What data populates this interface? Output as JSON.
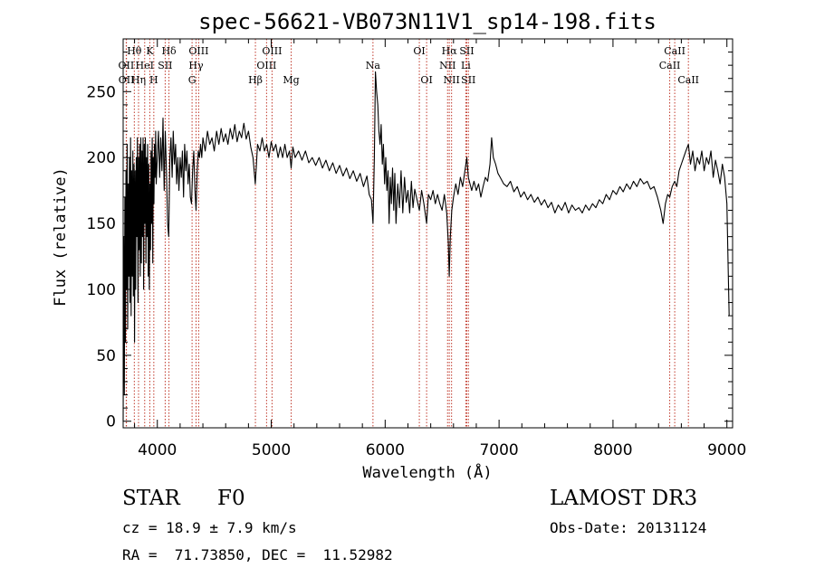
{
  "chart_data": {
    "type": "line",
    "title": "spec-56621-VB073N11V1_sp14-198.fits",
    "xlabel": "Wavelength (Å)",
    "ylabel": "Flux (relative)",
    "xlim": [
      3700,
      9050
    ],
    "ylim": [
      -5,
      290
    ],
    "x_ticks": [
      4000,
      5000,
      6000,
      7000,
      8000,
      9000
    ],
    "y_ticks": [
      0,
      50,
      100,
      150,
      200,
      250
    ],
    "line_color": "#000000",
    "marker_color": "#c0392b",
    "lines": [
      {
        "label": "Hθ",
        "wave": 3798,
        "row": 0
      },
      {
        "label": "OII",
        "wave": 3727,
        "row": 1
      },
      {
        "label": "OII",
        "wave": 3729,
        "row": 2
      },
      {
        "label": "HeI",
        "wave": 3889,
        "row": 1
      },
      {
        "label": "Hη",
        "wave": 3835,
        "row": 2
      },
      {
        "label": "K",
        "wave": 3934,
        "row": 0
      },
      {
        "label": "SII",
        "wave": 4069,
        "row": 1
      },
      {
        "label": "H",
        "wave": 3969,
        "row": 2
      },
      {
        "label": "Hδ",
        "wave": 4102,
        "row": 0
      },
      {
        "label": "OIII",
        "wave": 4363,
        "row": 0
      },
      {
        "label": "Hγ",
        "wave": 4340,
        "row": 1
      },
      {
        "label": "G",
        "wave": 4305,
        "row": 2
      },
      {
        "label": "OIII",
        "wave": 5007,
        "row": 0
      },
      {
        "label": "OIII",
        "wave": 4959,
        "row": 1
      },
      {
        "label": "Hβ",
        "wave": 4861,
        "row": 2
      },
      {
        "label": "Mg",
        "wave": 5175,
        "row": 2
      },
      {
        "label": "Na",
        "wave": 5893,
        "row": 1
      },
      {
        "label": "OI",
        "wave": 6300,
        "row": 0
      },
      {
        "label": "OI",
        "wave": 6364,
        "row": 2
      },
      {
        "label": "Hα",
        "wave": 6563,
        "row": 0
      },
      {
        "label": "NII",
        "wave": 6548,
        "row": 1
      },
      {
        "label": "NII",
        "wave": 6583,
        "row": 2
      },
      {
        "label": "SII",
        "wave": 6717,
        "row": 0
      },
      {
        "label": "Li",
        "wave": 6708,
        "row": 1
      },
      {
        "label": "SII",
        "wave": 6731,
        "row": 2
      },
      {
        "label": "CaII",
        "wave": 8542,
        "row": 0
      },
      {
        "label": "CaII",
        "wave": 8498,
        "row": 1
      },
      {
        "label": "CaII",
        "wave": 8662,
        "row": 2
      }
    ],
    "spectrum": [
      [
        3700,
        0
      ],
      [
        3705,
        140
      ],
      [
        3710,
        20
      ],
      [
        3715,
        170
      ],
      [
        3720,
        60
      ],
      [
        3725,
        190
      ],
      [
        3730,
        100
      ],
      [
        3735,
        210
      ],
      [
        3740,
        70
      ],
      [
        3745,
        180
      ],
      [
        3750,
        110
      ],
      [
        3755,
        200
      ],
      [
        3760,
        90
      ],
      [
        3765,
        215
      ],
      [
        3770,
        80
      ],
      [
        3775,
        190
      ],
      [
        3780,
        110
      ],
      [
        3785,
        205
      ],
      [
        3790,
        95
      ],
      [
        3795,
        195
      ],
      [
        3800,
        60
      ],
      [
        3805,
        190
      ],
      [
        3810,
        100
      ],
      [
        3815,
        200
      ],
      [
        3820,
        140
      ],
      [
        3825,
        215
      ],
      [
        3830,
        90
      ],
      [
        3835,
        200
      ],
      [
        3840,
        130
      ],
      [
        3845,
        210
      ],
      [
        3850,
        110
      ],
      [
        3855,
        215
      ],
      [
        3860,
        120
      ],
      [
        3865,
        205
      ],
      [
        3870,
        140
      ],
      [
        3875,
        215
      ],
      [
        3880,
        100
      ],
      [
        3885,
        210
      ],
      [
        3890,
        150
      ],
      [
        3895,
        215
      ],
      [
        3900,
        120
      ],
      [
        3905,
        200
      ],
      [
        3910,
        140
      ],
      [
        3915,
        210
      ],
      [
        3920,
        110
      ],
      [
        3925,
        195
      ],
      [
        3930,
        100
      ],
      [
        3935,
        180
      ],
      [
        3940,
        130
      ],
      [
        3945,
        205
      ],
      [
        3950,
        150
      ],
      [
        3955,
        215
      ],
      [
        3960,
        120
      ],
      [
        3965,
        200
      ],
      [
        3970,
        165
      ],
      [
        3975,
        210
      ],
      [
        3980,
        185
      ],
      [
        3985,
        220
      ],
      [
        3990,
        180
      ],
      [
        4000,
        200
      ],
      [
        4010,
        220
      ],
      [
        4020,
        185
      ],
      [
        4030,
        215
      ],
      [
        4040,
        190
      ],
      [
        4050,
        230
      ],
      [
        4060,
        175
      ],
      [
        4070,
        220
      ],
      [
        4080,
        190
      ],
      [
        4090,
        150
      ],
      [
        4100,
        140
      ],
      [
        4110,
        200
      ],
      [
        4120,
        215
      ],
      [
        4130,
        185
      ],
      [
        4140,
        220
      ],
      [
        4150,
        195
      ],
      [
        4160,
        210
      ],
      [
        4170,
        180
      ],
      [
        4180,
        200
      ],
      [
        4190,
        175
      ],
      [
        4200,
        200
      ],
      [
        4210,
        185
      ],
      [
        4220,
        205
      ],
      [
        4230,
        170
      ],
      [
        4240,
        210
      ],
      [
        4250,
        190
      ],
      [
        4260,
        205
      ],
      [
        4270,
        180
      ],
      [
        4280,
        195
      ],
      [
        4290,
        170
      ],
      [
        4300,
        165
      ],
      [
        4310,
        190
      ],
      [
        4320,
        205
      ],
      [
        4330,
        175
      ],
      [
        4340,
        160
      ],
      [
        4350,
        190
      ],
      [
        4360,
        205
      ],
      [
        4370,
        200
      ],
      [
        4380,
        210
      ],
      [
        4390,
        200
      ],
      [
        4400,
        215
      ],
      [
        4420,
        205
      ],
      [
        4440,
        220
      ],
      [
        4460,
        210
      ],
      [
        4480,
        215
      ],
      [
        4500,
        205
      ],
      [
        4520,
        220
      ],
      [
        4540,
        210
      ],
      [
        4560,
        222
      ],
      [
        4580,
        212
      ],
      [
        4600,
        218
      ],
      [
        4620,
        210
      ],
      [
        4640,
        222
      ],
      [
        4660,
        214
      ],
      [
        4680,
        225
      ],
      [
        4700,
        212
      ],
      [
        4720,
        220
      ],
      [
        4740,
        215
      ],
      [
        4760,
        226
      ],
      [
        4780,
        214
      ],
      [
        4800,
        220
      ],
      [
        4820,
        208
      ],
      [
        4840,
        200
      ],
      [
        4860,
        180
      ],
      [
        4870,
        195
      ],
      [
        4880,
        210
      ],
      [
        4900,
        205
      ],
      [
        4920,
        215
      ],
      [
        4940,
        205
      ],
      [
        4960,
        210
      ],
      [
        4980,
        200
      ],
      [
        5000,
        212
      ],
      [
        5020,
        205
      ],
      [
        5040,
        210
      ],
      [
        5060,
        200
      ],
      [
        5080,
        208
      ],
      [
        5100,
        200
      ],
      [
        5120,
        210
      ],
      [
        5140,
        200
      ],
      [
        5160,
        205
      ],
      [
        5175,
        192
      ],
      [
        5190,
        208
      ],
      [
        5210,
        200
      ],
      [
        5240,
        205
      ],
      [
        5270,
        198
      ],
      [
        5300,
        205
      ],
      [
        5330,
        196
      ],
      [
        5360,
        200
      ],
      [
        5390,
        194
      ],
      [
        5420,
        200
      ],
      [
        5450,
        192
      ],
      [
        5480,
        198
      ],
      [
        5510,
        190
      ],
      [
        5540,
        196
      ],
      [
        5570,
        188
      ],
      [
        5600,
        194
      ],
      [
        5630,
        186
      ],
      [
        5660,
        192
      ],
      [
        5690,
        184
      ],
      [
        5720,
        190
      ],
      [
        5750,
        182
      ],
      [
        5780,
        188
      ],
      [
        5810,
        178
      ],
      [
        5840,
        186
      ],
      [
        5860,
        172
      ],
      [
        5880,
        168
      ],
      [
        5893,
        150
      ],
      [
        5905,
        200
      ],
      [
        5915,
        265
      ],
      [
        5925,
        250
      ],
      [
        5935,
        240
      ],
      [
        5945,
        220
      ],
      [
        5955,
        210
      ],
      [
        5965,
        225
      ],
      [
        5975,
        195
      ],
      [
        5985,
        210
      ],
      [
        5995,
        180
      ],
      [
        6005,
        200
      ],
      [
        6015,
        175
      ],
      [
        6025,
        190
      ],
      [
        6035,
        150
      ],
      [
        6045,
        185
      ],
      [
        6055,
        165
      ],
      [
        6065,
        192
      ],
      [
        6075,
        160
      ],
      [
        6085,
        188
      ],
      [
        6095,
        150
      ],
      [
        6110,
        180
      ],
      [
        6125,
        162
      ],
      [
        6140,
        190
      ],
      [
        6155,
        158
      ],
      [
        6170,
        185
      ],
      [
        6185,
        166
      ],
      [
        6200,
        175
      ],
      [
        6215,
        158
      ],
      [
        6230,
        182
      ],
      [
        6245,
        162
      ],
      [
        6260,
        176
      ],
      [
        6280,
        168
      ],
      [
        6300,
        160
      ],
      [
        6320,
        175
      ],
      [
        6340,
        165
      ],
      [
        6364,
        150
      ],
      [
        6380,
        172
      ],
      [
        6400,
        168
      ],
      [
        6420,
        175
      ],
      [
        6440,
        165
      ],
      [
        6460,
        172
      ],
      [
        6480,
        165
      ],
      [
        6500,
        160
      ],
      [
        6520,
        172
      ],
      [
        6540,
        158
      ],
      [
        6555,
        135
      ],
      [
        6563,
        110
      ],
      [
        6572,
        140
      ],
      [
        6585,
        160
      ],
      [
        6600,
        170
      ],
      [
        6620,
        180
      ],
      [
        6640,
        172
      ],
      [
        6660,
        185
      ],
      [
        6680,
        178
      ],
      [
        6700,
        190
      ],
      [
        6717,
        200
      ],
      [
        6730,
        185
      ],
      [
        6745,
        180
      ],
      [
        6760,
        175
      ],
      [
        6780,
        182
      ],
      [
        6800,
        175
      ],
      [
        6820,
        180
      ],
      [
        6840,
        170
      ],
      [
        6860,
        178
      ],
      [
        6880,
        185
      ],
      [
        6900,
        182
      ],
      [
        6920,
        195
      ],
      [
        6935,
        215
      ],
      [
        6950,
        200
      ],
      [
        6970,
        195
      ],
      [
        6990,
        188
      ],
      [
        7010,
        185
      ],
      [
        7040,
        180
      ],
      [
        7070,
        178
      ],
      [
        7100,
        182
      ],
      [
        7130,
        174
      ],
      [
        7160,
        178
      ],
      [
        7190,
        170
      ],
      [
        7220,
        174
      ],
      [
        7250,
        168
      ],
      [
        7280,
        172
      ],
      [
        7310,
        166
      ],
      [
        7340,
        170
      ],
      [
        7370,
        164
      ],
      [
        7400,
        168
      ],
      [
        7430,
        162
      ],
      [
        7460,
        166
      ],
      [
        7490,
        158
      ],
      [
        7520,
        164
      ],
      [
        7550,
        160
      ],
      [
        7580,
        166
      ],
      [
        7610,
        158
      ],
      [
        7640,
        164
      ],
      [
        7670,
        160
      ],
      [
        7700,
        162
      ],
      [
        7730,
        158
      ],
      [
        7760,
        164
      ],
      [
        7790,
        160
      ],
      [
        7820,
        165
      ],
      [
        7850,
        162
      ],
      [
        7880,
        168
      ],
      [
        7910,
        165
      ],
      [
        7940,
        172
      ],
      [
        7970,
        168
      ],
      [
        8000,
        175
      ],
      [
        8030,
        172
      ],
      [
        8060,
        178
      ],
      [
        8090,
        174
      ],
      [
        8120,
        180
      ],
      [
        8150,
        176
      ],
      [
        8180,
        182
      ],
      [
        8210,
        178
      ],
      [
        8240,
        184
      ],
      [
        8270,
        180
      ],
      [
        8300,
        182
      ],
      [
        8330,
        176
      ],
      [
        8360,
        178
      ],
      [
        8390,
        170
      ],
      [
        8420,
        160
      ],
      [
        8440,
        150
      ],
      [
        8460,
        165
      ],
      [
        8480,
        172
      ],
      [
        8498,
        170
      ],
      [
        8520,
        178
      ],
      [
        8542,
        182
      ],
      [
        8560,
        178
      ],
      [
        8580,
        190
      ],
      [
        8600,
        195
      ],
      [
        8620,
        200
      ],
      [
        8640,
        205
      ],
      [
        8662,
        210
      ],
      [
        8680,
        195
      ],
      [
        8700,
        205
      ],
      [
        8720,
        190
      ],
      [
        8740,
        200
      ],
      [
        8760,
        195
      ],
      [
        8780,
        205
      ],
      [
        8800,
        190
      ],
      [
        8820,
        200
      ],
      [
        8840,
        195
      ],
      [
        8860,
        205
      ],
      [
        8880,
        185
      ],
      [
        8900,
        198
      ],
      [
        8920,
        190
      ],
      [
        8940,
        180
      ],
      [
        8960,
        195
      ],
      [
        8980,
        185
      ],
      [
        9000,
        165
      ],
      [
        9010,
        120
      ],
      [
        9020,
        80
      ]
    ]
  },
  "object": {
    "class": "STAR",
    "subclass": "F0",
    "cz": "cz = 18.9 ± 7.9 km/s",
    "coords": "RA =  71.73850, DEC =  11.52982",
    "survey": "LAMOST DR3",
    "obs_date": "Obs-Date: 20131124"
  }
}
